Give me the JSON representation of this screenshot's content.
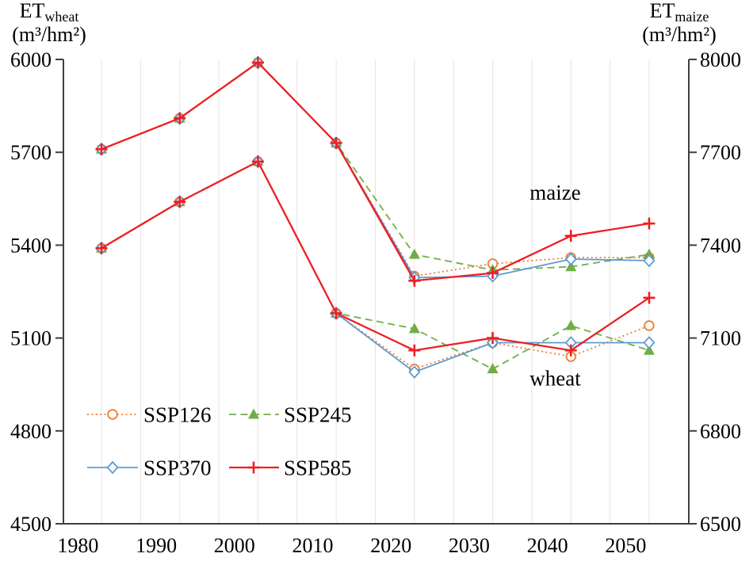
{
  "figure": {
    "colors": {
      "axis": "#3f3f3f",
      "grid": "#e4e4e4",
      "text": "#000000",
      "background": "#ffffff"
    }
  },
  "chart_data": {
    "type": "line",
    "x_years": [
      1983,
      1993,
      2003,
      2013,
      2023,
      2033,
      2043,
      2053
    ],
    "x_tick_labels": [
      "1980",
      "1990",
      "2000",
      "2010",
      "2020",
      "2030",
      "2040",
      "2050"
    ],
    "grid": {
      "show_vertical": true,
      "interval_years": 5,
      "first_year": 1983,
      "last_year": 2053
    },
    "left_axis": {
      "name": "ET_wheat",
      "title_main": "ET",
      "title_sub": "wheat",
      "title_unit": "(m³/hm²)",
      "min": 4500,
      "max": 6000,
      "tick_step": 300,
      "ticks": [
        "6000",
        "5700",
        "5400",
        "5100",
        "4800",
        "4500"
      ]
    },
    "right_axis": {
      "name": "ET_maize",
      "title_main": "ET",
      "title_sub": "maize",
      "title_unit": "(m³/hm²)",
      "min": 6500,
      "max": 8000,
      "tick_step": 300,
      "ticks": [
        "8000",
        "7700",
        "7400",
        "7100",
        "6800",
        "6500"
      ]
    },
    "series": [
      {
        "name": "SSP126",
        "color": "#ED7D31",
        "marker": "open-circle",
        "line_style": "dotted",
        "wheat": [
          5390,
          5540,
          5670,
          5180,
          5000,
          5085,
          5040,
          5140
        ],
        "maize": [
          7710,
          7810,
          7990,
          7730,
          7300,
          7340,
          7360,
          7360
        ]
      },
      {
        "name": "SSP245",
        "color": "#70AD47",
        "marker": "filled-triangle",
        "line_style": "dashed",
        "wheat": [
          5390,
          5540,
          5670,
          5180,
          5130,
          5000,
          5140,
          5060
        ],
        "maize": [
          7710,
          7810,
          7990,
          7730,
          7370,
          7320,
          7330,
          7370
        ]
      },
      {
        "name": "SSP370",
        "color": "#5B9BD5",
        "marker": "open-diamond",
        "line_style": "solid",
        "wheat": [
          5390,
          5540,
          5670,
          5180,
          4990,
          5085,
          5085,
          5085
        ],
        "maize": [
          7710,
          7810,
          7990,
          7730,
          7295,
          7300,
          7355,
          7350
        ]
      },
      {
        "name": "SSP585",
        "color": "#ED2024",
        "marker": "plus",
        "line_style": "solid",
        "wheat": [
          5390,
          5540,
          5670,
          5180,
          5060,
          5100,
          5060,
          5230
        ],
        "maize": [
          7710,
          7810,
          7990,
          7730,
          7285,
          7310,
          7430,
          7470
        ]
      }
    ],
    "annotations": [
      {
        "text": "maize",
        "year": 2041,
        "value": 7570,
        "axis": "right"
      },
      {
        "text": "wheat",
        "year": 2041,
        "value": 4970,
        "axis": "left"
      }
    ],
    "legend": {
      "position": "inside-lower-left",
      "items": [
        "SSP126",
        "SSP245",
        "SSP370",
        "SSP585"
      ]
    }
  }
}
